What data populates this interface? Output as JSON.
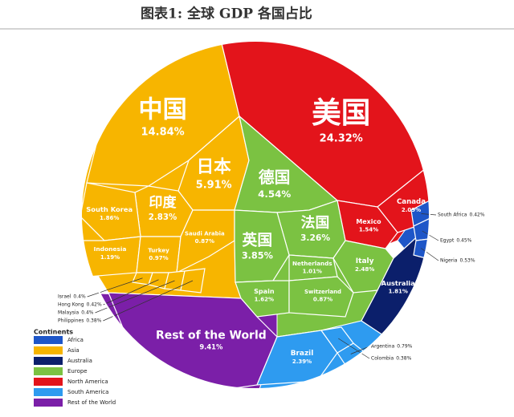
{
  "chart_data": {
    "type": "voronoi-treemap",
    "title": "图表1:  全球 GDP 各国占比",
    "legend_title": "Continents",
    "groups": [
      {
        "name": "Africa",
        "color": "#1e56c8"
      },
      {
        "name": "Asia",
        "color": "#f7b500"
      },
      {
        "name": "Australia",
        "color": "#0b1f6b"
      },
      {
        "name": "Europe",
        "color": "#7bc242"
      },
      {
        "name": "North America",
        "color": "#e3141b"
      },
      {
        "name": "South America",
        "color": "#2e9bf0"
      },
      {
        "name": "Rest of the World",
        "color": "#7b1fa8"
      }
    ],
    "cells": [
      {
        "name": "中国",
        "value": 14.84,
        "value_label": "14.84%",
        "group": 1
      },
      {
        "name": "日本",
        "value": 5.91,
        "value_label": "5.91%",
        "group": 1
      },
      {
        "name": "印度",
        "value": 2.83,
        "value_label": "2.83%",
        "group": 1
      },
      {
        "name": "South Korea",
        "value": 1.86,
        "value_label": "1.86%",
        "group": 1
      },
      {
        "name": "Indonesia",
        "value": 1.19,
        "value_label": "1.19%",
        "group": 1
      },
      {
        "name": "Turkey",
        "value": 0.97,
        "value_label": "0.97%",
        "group": 1
      },
      {
        "name": "Saudi Arabia",
        "value": 0.87,
        "value_label": "0.87%",
        "group": 1
      },
      {
        "name": "Israel",
        "value": 0.4,
        "value_label": "0.4%",
        "group": 1
      },
      {
        "name": "Hong Kong",
        "value": 0.42,
        "value_label": "0.42%",
        "group": 1
      },
      {
        "name": "Malaysia",
        "value": 0.4,
        "value_label": "0.4%",
        "group": 1
      },
      {
        "name": "Philippines",
        "value": 0.38,
        "value_label": "0.38%",
        "group": 1
      },
      {
        "name": "美国",
        "value": 24.32,
        "value_label": "24.32%",
        "group": 4
      },
      {
        "name": "Canada",
        "value": 2.09,
        "value_label": "2.09%",
        "group": 4
      },
      {
        "name": "Mexico",
        "value": 1.54,
        "value_label": "1.54%",
        "group": 4
      },
      {
        "name": "德国",
        "value": 4.54,
        "value_label": "4.54%",
        "group": 3
      },
      {
        "name": "法国",
        "value": 3.26,
        "value_label": "3.26%",
        "group": 3
      },
      {
        "name": "英国",
        "value": 3.85,
        "value_label": "3.85%",
        "group": 3
      },
      {
        "name": "Italy",
        "value": 2.48,
        "value_label": "2.48%",
        "group": 3
      },
      {
        "name": "Netherlands",
        "value": 1.01,
        "value_label": "1.01%",
        "group": 3
      },
      {
        "name": "Spain",
        "value": 1.62,
        "value_label": "1.62%",
        "group": 3
      },
      {
        "name": "Switzerland",
        "value": 0.87,
        "value_label": "0.87%",
        "group": 3
      },
      {
        "name": "Rest of the World",
        "value": 9.41,
        "value_label": "9.41%",
        "group": 6
      },
      {
        "name": "Brazil",
        "value": 2.39,
        "value_label": "2.39%",
        "group": 5
      },
      {
        "name": "Argentina",
        "value": 0.79,
        "value_label": "0.79%",
        "group": 5
      },
      {
        "name": "Colombia",
        "value": 0.38,
        "value_label": "0.38%",
        "group": 5
      },
      {
        "name": "Australia",
        "value": 1.81,
        "value_label": "1.81%",
        "group": 2
      },
      {
        "name": "South Africa",
        "value": 0.42,
        "value_label": "0.42%",
        "group": 0
      },
      {
        "name": "Egypt",
        "value": 0.45,
        "value_label": "0.45%",
        "group": 0
      },
      {
        "name": "Nigeria",
        "value": 0.53,
        "value_label": "0.53%",
        "group": 0
      }
    ]
  }
}
